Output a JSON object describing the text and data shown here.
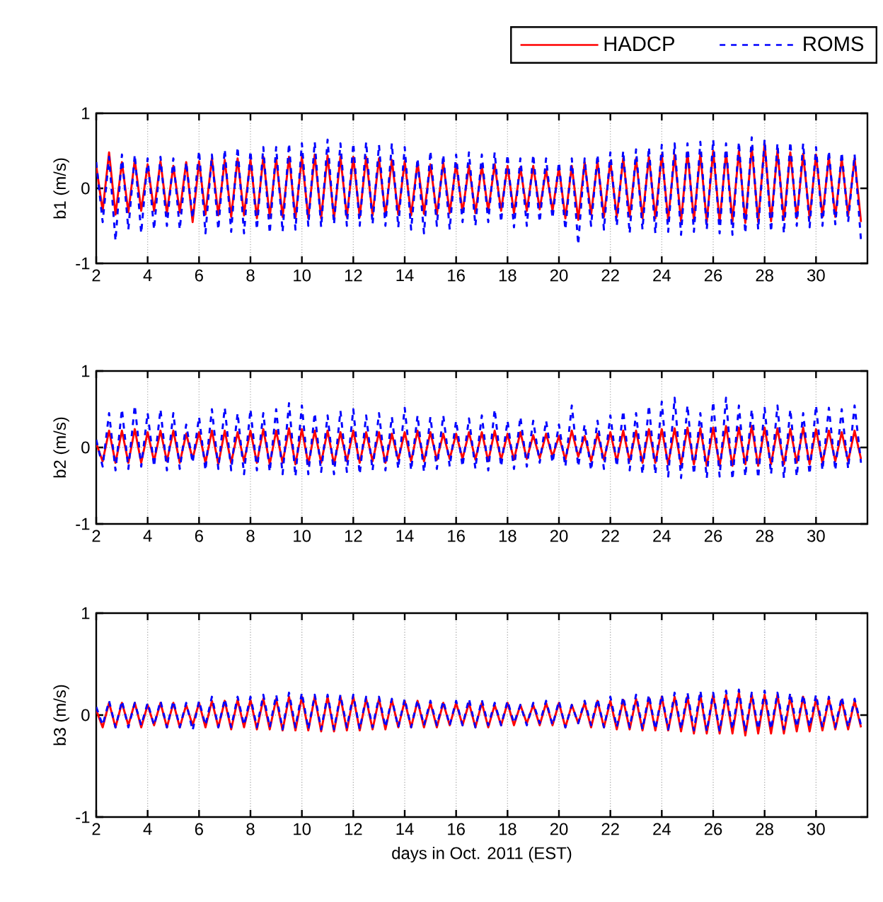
{
  "chart_data": [
    {
      "type": "line",
      "ylabel": "b1 (m/s)",
      "xlim": [
        2,
        32
      ],
      "ylim": [
        -1,
        1
      ],
      "xticks": [
        2,
        4,
        6,
        8,
        10,
        12,
        14,
        16,
        18,
        20,
        22,
        24,
        26,
        28,
        30
      ],
      "yticks": [
        -1,
        0,
        1
      ],
      "grid": true,
      "legend": "top right",
      "x": [
        2,
        2.25,
        2.5,
        2.75,
        3,
        3.25,
        3.5,
        3.75,
        4,
        4.25,
        4.5,
        4.75,
        5,
        5.25,
        5.5,
        5.75,
        6,
        6.25,
        6.5,
        6.75,
        7,
        7.25,
        7.5,
        7.75,
        8,
        8.25,
        8.5,
        8.75,
        9,
        9.25,
        9.5,
        9.75,
        10,
        10.25,
        10.5,
        10.75,
        11,
        11.25,
        11.5,
        11.75,
        12,
        12.25,
        12.5,
        12.75,
        13,
        13.25,
        13.5,
        13.75,
        14,
        14.25,
        14.5,
        14.75,
        15,
        15.25,
        15.5,
        15.75,
        16,
        16.25,
        16.5,
        16.75,
        17,
        17.25,
        17.5,
        17.75,
        18,
        18.25,
        18.5,
        18.75,
        19,
        19.25,
        19.5,
        19.75,
        20,
        20.25,
        20.5,
        20.75,
        21,
        21.25,
        21.5,
        21.75,
        22,
        22.25,
        22.5,
        22.75,
        23,
        23.25,
        23.5,
        23.75,
        24,
        24.25,
        24.5,
        24.75,
        25,
        25.25,
        25.5,
        25.75,
        26,
        26.25,
        26.5,
        26.75,
        27,
        27.25,
        27.5,
        27.75,
        28,
        28.25,
        28.5,
        28.75,
        29,
        29.25,
        29.5,
        29.75,
        30,
        30.25,
        30.5,
        30.75,
        31,
        31.25,
        31.5,
        31.75
      ],
      "series": [
        {
          "name": "HADCP",
          "color": "#ff0000",
          "line_style": "solid",
          "values": [
            0.3,
            -0.3,
            0.48,
            -0.35,
            0.35,
            -0.32,
            0.38,
            -0.3,
            0.32,
            -0.3,
            0.36,
            -0.33,
            0.3,
            -0.32,
            0.35,
            -0.45,
            0.36,
            -0.35,
            0.4,
            -0.36,
            0.38,
            -0.38,
            0.4,
            -0.36,
            0.38,
            -0.4,
            0.42,
            -0.38,
            0.4,
            -0.38,
            0.42,
            -0.4,
            0.42,
            -0.4,
            0.45,
            -0.4,
            0.44,
            -0.4,
            0.42,
            -0.38,
            0.42,
            -0.38,
            0.42,
            -0.36,
            0.4,
            -0.36,
            0.38,
            -0.35,
            0.36,
            -0.36,
            0.35,
            -0.34,
            0.32,
            -0.35,
            0.34,
            -0.33,
            0.33,
            -0.32,
            0.3,
            -0.33,
            0.3,
            -0.3,
            0.32,
            -0.3,
            0.3,
            -0.33,
            0.28,
            -0.3,
            0.3,
            -0.28,
            0.25,
            -0.3,
            0.28,
            -0.4,
            0.3,
            -0.42,
            0.35,
            -0.35,
            0.36,
            -0.38,
            0.36,
            -0.38,
            0.4,
            -0.38,
            0.4,
            -0.4,
            0.42,
            -0.4,
            0.45,
            -0.42,
            0.45,
            -0.44,
            0.48,
            -0.42,
            0.46,
            -0.45,
            0.5,
            -0.45,
            0.48,
            -0.44,
            0.5,
            -0.46,
            0.55,
            -0.45,
            0.6,
            -0.44,
            0.5,
            -0.42,
            0.48,
            -0.4,
            0.46,
            -0.4,
            0.45,
            -0.38,
            0.42,
            -0.38,
            0.4,
            -0.36,
            0.4,
            -0.45
          ]
        },
        {
          "name": "ROMS",
          "color": "#0000ff",
          "line_style": "dashed",
          "values": [
            0.35,
            -0.45,
            0.42,
            -0.7,
            0.45,
            -0.55,
            0.45,
            -0.6,
            0.4,
            -0.55,
            0.42,
            -0.5,
            0.4,
            -0.55,
            0.35,
            -0.4,
            0.5,
            -0.6,
            0.45,
            -0.55,
            0.52,
            -0.58,
            0.55,
            -0.6,
            0.5,
            -0.55,
            0.55,
            -0.6,
            0.55,
            -0.58,
            0.6,
            -0.55,
            0.6,
            -0.5,
            0.62,
            -0.52,
            0.65,
            -0.48,
            0.6,
            -0.5,
            0.6,
            -0.5,
            0.62,
            -0.48,
            0.58,
            -0.5,
            0.6,
            -0.52,
            0.55,
            -0.55,
            0.4,
            -0.6,
            0.5,
            -0.5,
            0.45,
            -0.55,
            0.45,
            -0.45,
            0.48,
            -0.5,
            0.45,
            -0.45,
            0.48,
            -0.45,
            0.45,
            -0.52,
            0.4,
            -0.5,
            0.45,
            -0.45,
            0.4,
            -0.4,
            0.35,
            -0.55,
            0.4,
            -0.75,
            0.4,
            -0.5,
            0.45,
            -0.55,
            0.48,
            -0.5,
            0.5,
            -0.6,
            0.52,
            -0.55,
            0.55,
            -0.6,
            0.58,
            -0.58,
            0.6,
            -0.62,
            0.6,
            -0.58,
            0.62,
            -0.55,
            0.65,
            -0.6,
            0.6,
            -0.62,
            0.62,
            -0.6,
            0.68,
            -0.55,
            0.65,
            -0.58,
            0.6,
            -0.6,
            0.62,
            -0.5,
            0.6,
            -0.52,
            0.55,
            -0.5,
            0.5,
            -0.48,
            0.48,
            -0.45,
            0.45,
            -0.7
          ]
        }
      ]
    },
    {
      "type": "line",
      "ylabel": "b2 (m/s)",
      "xlim": [
        2,
        32
      ],
      "ylim": [
        -1,
        1
      ],
      "xticks": [
        2,
        4,
        6,
        8,
        10,
        12,
        14,
        16,
        18,
        20,
        22,
        24,
        26,
        28,
        30
      ],
      "yticks": [
        -1,
        0,
        1
      ],
      "grid": true,
      "x": [
        2,
        2.25,
        2.5,
        2.75,
        3,
        3.25,
        3.5,
        3.75,
        4,
        4.25,
        4.5,
        4.75,
        5,
        5.25,
        5.5,
        5.75,
        6,
        6.25,
        6.5,
        6.75,
        7,
        7.25,
        7.5,
        7.75,
        8,
        8.25,
        8.5,
        8.75,
        9,
        9.25,
        9.5,
        9.75,
        10,
        10.25,
        10.5,
        10.75,
        11,
        11.25,
        11.5,
        11.75,
        12,
        12.25,
        12.5,
        12.75,
        13,
        13.25,
        13.5,
        13.75,
        14,
        14.25,
        14.5,
        14.75,
        15,
        15.25,
        15.5,
        15.75,
        16,
        16.25,
        16.5,
        16.75,
        17,
        17.25,
        17.5,
        17.75,
        18,
        18.25,
        18.5,
        18.75,
        19,
        19.25,
        19.5,
        19.75,
        20,
        20.25,
        20.5,
        20.75,
        21,
        21.25,
        21.5,
        21.75,
        22,
        22.25,
        22.5,
        22.75,
        23,
        23.25,
        23.5,
        23.75,
        24,
        24.25,
        24.5,
        24.75,
        25,
        25.25,
        25.5,
        25.75,
        26,
        26.25,
        26.5,
        26.75,
        27,
        27.25,
        27.5,
        27.75,
        28,
        28.25,
        28.5,
        28.75,
        29,
        29.25,
        29.5,
        29.75,
        30,
        30.25,
        30.5,
        30.75,
        31,
        31.25,
        31.5,
        31.75
      ],
      "series": [
        {
          "color": "#ff0000",
          "line_style": "solid",
          "values": [
            0.05,
            -0.18,
            0.22,
            -0.2,
            0.22,
            -0.2,
            0.24,
            -0.2,
            0.2,
            -0.18,
            0.22,
            -0.18,
            0.22,
            -0.2,
            0.18,
            -0.15,
            0.2,
            -0.2,
            0.22,
            -0.22,
            0.22,
            -0.2,
            0.2,
            -0.18,
            0.22,
            -0.2,
            0.24,
            -0.22,
            0.22,
            -0.2,
            0.25,
            -0.22,
            0.24,
            -0.22,
            0.22,
            -0.2,
            0.22,
            -0.22,
            0.2,
            -0.18,
            0.22,
            -0.2,
            0.2,
            -0.18,
            0.2,
            -0.2,
            0.18,
            -0.16,
            0.2,
            -0.18,
            0.22,
            -0.18,
            0.2,
            -0.16,
            0.18,
            -0.15,
            0.18,
            -0.15,
            0.2,
            -0.16,
            0.2,
            -0.18,
            0.22,
            -0.16,
            0.18,
            -0.16,
            0.2,
            -0.15,
            0.16,
            -0.14,
            0.18,
            -0.12,
            0.15,
            -0.16,
            0.22,
            -0.12,
            0.15,
            -0.18,
            0.18,
            -0.16,
            0.2,
            -0.18,
            0.22,
            -0.18,
            0.22,
            -0.2,
            0.24,
            -0.2,
            0.24,
            -0.22,
            0.25,
            -0.22,
            0.26,
            -0.22,
            0.25,
            -0.24,
            0.26,
            -0.24,
            0.28,
            -0.24,
            0.26,
            -0.22,
            0.28,
            -0.24,
            0.26,
            -0.22,
            0.25,
            -0.22,
            0.24,
            -0.2,
            0.26,
            -0.22,
            0.24,
            -0.2,
            0.22,
            -0.18,
            0.2,
            -0.18,
            0.22,
            -0.15
          ]
        },
        {
          "color": "#0000ff",
          "line_style": "dashed",
          "values": [
            0.1,
            -0.25,
            0.45,
            -0.3,
            0.5,
            -0.28,
            0.55,
            -0.25,
            0.45,
            -0.25,
            0.5,
            -0.3,
            0.45,
            -0.28,
            0.3,
            -0.2,
            0.4,
            -0.3,
            0.5,
            -0.28,
            0.52,
            -0.3,
            0.45,
            -0.35,
            0.5,
            -0.3,
            0.45,
            -0.32,
            0.5,
            -0.35,
            0.58,
            -0.38,
            0.55,
            -0.35,
            0.45,
            -0.32,
            0.42,
            -0.35,
            0.48,
            -0.32,
            0.5,
            -0.35,
            0.42,
            -0.3,
            0.45,
            -0.3,
            0.4,
            -0.28,
            0.52,
            -0.3,
            0.42,
            -0.32,
            0.4,
            -0.28,
            0.42,
            -0.25,
            0.35,
            -0.25,
            0.38,
            -0.28,
            0.42,
            -0.3,
            0.5,
            -0.25,
            0.35,
            -0.28,
            0.4,
            -0.25,
            0.35,
            -0.2,
            0.35,
            -0.2,
            0.3,
            -0.25,
            0.55,
            -0.25,
            0.3,
            -0.3,
            0.35,
            -0.28,
            0.42,
            -0.25,
            0.48,
            -0.3,
            0.45,
            -0.35,
            0.55,
            -0.35,
            0.6,
            -0.38,
            0.65,
            -0.4,
            0.55,
            -0.35,
            0.45,
            -0.4,
            0.6,
            -0.38,
            0.65,
            -0.42,
            0.55,
            -0.38,
            0.5,
            -0.4,
            0.52,
            -0.35,
            0.55,
            -0.4,
            0.5,
            -0.38,
            0.45,
            -0.35,
            0.55,
            -0.3,
            0.52,
            -0.3,
            0.5,
            -0.28,
            0.55,
            -0.2
          ]
        }
      ]
    },
    {
      "type": "line",
      "ylabel": "b3 (m/s)",
      "xlabel": "days in Oct. 2011 (EST)",
      "xlim": [
        2,
        32
      ],
      "ylim": [
        -1,
        1
      ],
      "xticks": [
        2,
        4,
        6,
        8,
        10,
        12,
        14,
        16,
        18,
        20,
        22,
        24,
        26,
        28,
        30
      ],
      "yticks": [
        -1,
        0,
        1
      ],
      "grid": true,
      "x": [
        2,
        2.25,
        2.5,
        2.75,
        3,
        3.25,
        3.5,
        3.75,
        4,
        4.25,
        4.5,
        4.75,
        5,
        5.25,
        5.5,
        5.75,
        6,
        6.25,
        6.5,
        6.75,
        7,
        7.25,
        7.5,
        7.75,
        8,
        8.25,
        8.5,
        8.75,
        9,
        9.25,
        9.5,
        9.75,
        10,
        10.25,
        10.5,
        10.75,
        11,
        11.25,
        11.5,
        11.75,
        12,
        12.25,
        12.5,
        12.75,
        13,
        13.25,
        13.5,
        13.75,
        14,
        14.25,
        14.5,
        14.75,
        15,
        15.25,
        15.5,
        15.75,
        16,
        16.25,
        16.5,
        16.75,
        17,
        17.25,
        17.5,
        17.75,
        18,
        18.25,
        18.5,
        18.75,
        19,
        19.25,
        19.5,
        19.75,
        20,
        20.25,
        20.5,
        20.75,
        21,
        21.25,
        21.5,
        21.75,
        22,
        22.25,
        22.5,
        22.75,
        23,
        23.25,
        23.5,
        23.75,
        24,
        24.25,
        24.5,
        24.75,
        25,
        25.25,
        25.5,
        25.75,
        26,
        26.25,
        26.5,
        26.75,
        27,
        27.25,
        27.5,
        27.75,
        28,
        28.25,
        28.5,
        28.75,
        29,
        29.25,
        29.5,
        29.75,
        30,
        30.25,
        30.5,
        30.75,
        31,
        31.25,
        31.5,
        31.75
      ],
      "series": [
        {
          "color": "#ff0000",
          "line_style": "solid",
          "values": [
            0.05,
            -0.12,
            0.12,
            -0.12,
            0.12,
            -0.1,
            0.12,
            -0.12,
            0.1,
            -0.1,
            0.12,
            -0.12,
            0.12,
            -0.12,
            0.1,
            -0.1,
            0.12,
            -0.12,
            0.14,
            -0.12,
            0.14,
            -0.14,
            0.15,
            -0.12,
            0.15,
            -0.14,
            0.16,
            -0.14,
            0.16,
            -0.15,
            0.18,
            -0.15,
            0.18,
            -0.15,
            0.18,
            -0.16,
            0.18,
            -0.16,
            0.18,
            -0.15,
            0.18,
            -0.15,
            0.16,
            -0.14,
            0.16,
            -0.14,
            0.15,
            -0.12,
            0.14,
            -0.12,
            0.14,
            -0.12,
            0.12,
            -0.12,
            0.12,
            -0.1,
            0.12,
            -0.1,
            0.12,
            -0.12,
            0.12,
            -0.12,
            0.1,
            -0.1,
            0.12,
            -0.1,
            0.1,
            -0.08,
            0.1,
            -0.1,
            0.12,
            -0.1,
            0.12,
            -0.12,
            0.1,
            -0.08,
            0.12,
            -0.12,
            0.14,
            -0.12,
            0.14,
            -0.14,
            0.15,
            -0.14,
            0.16,
            -0.15,
            0.17,
            -0.15,
            0.18,
            -0.15,
            0.18,
            -0.16,
            0.18,
            -0.18,
            0.2,
            -0.18,
            0.2,
            -0.18,
            0.2,
            -0.18,
            0.22,
            -0.2,
            0.2,
            -0.18,
            0.2,
            -0.18,
            0.2,
            -0.18,
            0.18,
            -0.16,
            0.18,
            -0.16,
            0.16,
            -0.15,
            0.16,
            -0.14,
            0.15,
            -0.14,
            0.14,
            -0.12
          ]
        },
        {
          "color": "#0000ff",
          "line_style": "dashed",
          "values": [
            0.08,
            -0.1,
            0.14,
            -0.12,
            0.14,
            -0.12,
            0.12,
            -0.1,
            0.12,
            -0.1,
            0.14,
            -0.12,
            0.14,
            -0.12,
            0.12,
            -0.15,
            0.14,
            -0.1,
            0.18,
            -0.12,
            0.16,
            -0.12,
            0.18,
            -0.1,
            0.18,
            -0.12,
            0.2,
            -0.12,
            0.2,
            -0.14,
            0.22,
            -0.12,
            0.22,
            -0.14,
            0.2,
            -0.14,
            0.2,
            -0.14,
            0.2,
            -0.12,
            0.2,
            -0.14,
            0.18,
            -0.12,
            0.18,
            -0.12,
            0.16,
            -0.12,
            0.16,
            -0.12,
            0.15,
            -0.1,
            0.14,
            -0.1,
            0.14,
            -0.1,
            0.14,
            -0.1,
            0.16,
            -0.12,
            0.15,
            -0.1,
            0.12,
            -0.1,
            0.14,
            -0.08,
            0.1,
            -0.1,
            0.12,
            -0.08,
            0.14,
            -0.1,
            0.14,
            -0.12,
            0.1,
            -0.08,
            0.14,
            -0.1,
            0.16,
            -0.12,
            0.18,
            -0.12,
            0.18,
            -0.12,
            0.2,
            -0.14,
            0.2,
            -0.14,
            0.2,
            -0.14,
            0.22,
            -0.14,
            0.22,
            -0.15,
            0.24,
            -0.16,
            0.22,
            -0.16,
            0.24,
            -0.14,
            0.25,
            -0.16,
            0.22,
            -0.14,
            0.24,
            -0.14,
            0.22,
            -0.14,
            0.22,
            -0.12,
            0.2,
            -0.12,
            0.2,
            -0.12,
            0.18,
            -0.12,
            0.18,
            -0.12,
            0.16,
            -0.1
          ]
        }
      ]
    }
  ]
}
